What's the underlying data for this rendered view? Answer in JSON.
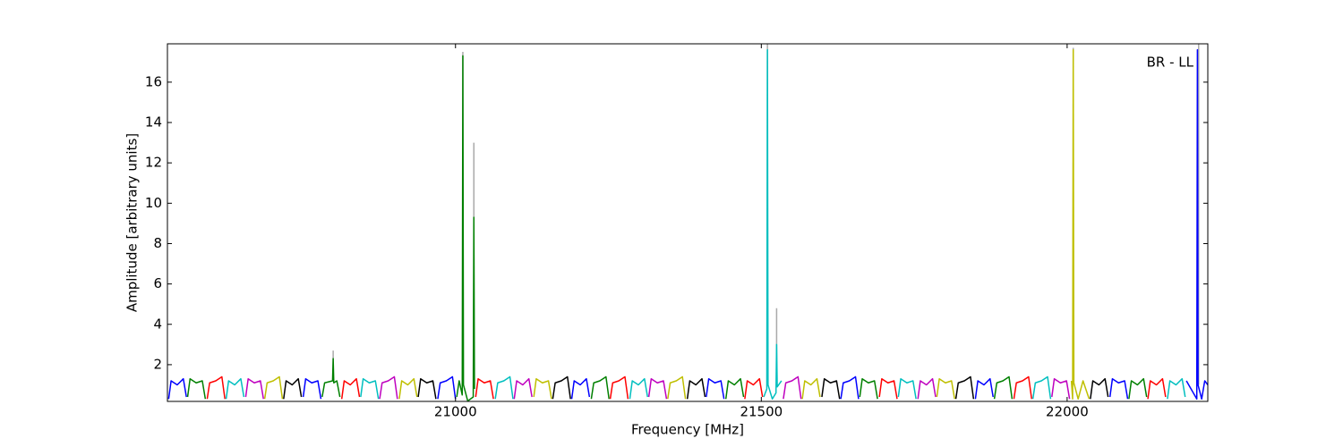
{
  "chart_data": {
    "type": "line",
    "annotation": "BR - LL",
    "xlabel": "Frequency [MHz]",
    "ylabel": "Amplitude [arbitrary units]",
    "xlim": [
      20529,
      22230
    ],
    "ylim": [
      0.18,
      17.9
    ],
    "xticks": [
      21000,
      21500,
      22000
    ],
    "yticks": [
      2,
      4,
      6,
      8,
      10,
      12,
      14,
      16
    ],
    "series": [
      {
        "color": "#aaaaaa",
        "x": [
          20800,
          20800,
          null,
          21012,
          21012,
          null,
          21030,
          21030,
          null,
          21510,
          21510,
          null,
          21525,
          21525,
          null,
          22010,
          22010,
          null,
          22215,
          22215
        ],
        "values": [
          1.2,
          2.7,
          null,
          1.0,
          17.5,
          null,
          1.0,
          13.0,
          null,
          1.0,
          17.9,
          null,
          1.0,
          4.8,
          null,
          1.0,
          17.7,
          null,
          1.0,
          17.9
        ]
      },
      {
        "color": "#0000ff",
        "x": [
          20531,
          20535,
          20545,
          20555,
          20560,
          null,
          20751,
          20755,
          20765,
          20775,
          20780,
          null,
          20971,
          20975,
          20985,
          20995,
          21000,
          null,
          21190,
          21194,
          21204,
          21214,
          21219,
          null,
          21410,
          21414,
          21424,
          21434,
          21439,
          null,
          21630,
          21634,
          21644,
          21654,
          21659,
          null,
          21850,
          21854,
          21864,
          21874,
          21879,
          null,
          22070,
          22074,
          22084,
          22094,
          22099,
          null,
          22195,
          22212,
          22213,
          22214,
          22220,
          22225,
          22230
        ],
        "values": [
          0.3,
          1.2,
          1.0,
          1.3,
          0.4,
          null,
          0.4,
          1.3,
          1.1,
          1.2,
          0.3,
          null,
          0.3,
          1.1,
          1.2,
          1.4,
          0.3,
          null,
          0.3,
          1.2,
          1.0,
          1.3,
          0.4,
          null,
          0.4,
          1.3,
          1.1,
          1.2,
          0.3,
          null,
          0.3,
          1.1,
          1.2,
          1.4,
          0.3,
          null,
          0.3,
          1.2,
          1.0,
          1.3,
          0.4,
          null,
          0.4,
          1.3,
          1.1,
          1.2,
          0.3,
          null,
          1.2,
          0.3,
          17.6,
          1.0,
          0.3,
          1.2,
          1.0
        ]
      },
      {
        "color": "#008000",
        "x": [
          20562,
          20566,
          20576,
          20586,
          20591,
          null,
          20782,
          20786,
          20799,
          20800,
          20801,
          20806,
          20811,
          null,
          21002,
          21006,
          21011,
          21012,
          21013,
          21020,
          21029,
          21030,
          21031,
          null,
          21222,
          21226,
          21236,
          21246,
          21251,
          null,
          21442,
          21446,
          21456,
          21466,
          21471,
          null,
          21661,
          21665,
          21675,
          21685,
          21690,
          null,
          21881,
          21885,
          21895,
          21905,
          21910,
          null,
          22101,
          22105,
          22115,
          22125,
          22130
        ],
        "values": [
          0.4,
          1.3,
          1.1,
          1.2,
          0.3,
          null,
          0.4,
          1.1,
          1.2,
          2.3,
          1.1,
          1.2,
          0.4,
          null,
          0.4,
          1.2,
          0.5,
          17.3,
          1.0,
          0.2,
          0.4,
          9.3,
          0.8,
          null,
          0.3,
          1.1,
          1.2,
          1.4,
          0.3,
          null,
          0.3,
          1.2,
          1.0,
          1.3,
          0.4,
          null,
          0.4,
          1.3,
          1.1,
          1.2,
          0.3,
          null,
          0.3,
          1.1,
          1.2,
          1.4,
          0.3,
          null,
          0.3,
          1.2,
          1.0,
          1.3,
          0.4
        ]
      },
      {
        "color": "#ff0000",
        "x": [
          20594,
          20598,
          20608,
          20618,
          20623,
          null,
          20814,
          20818,
          20828,
          20838,
          20843,
          null,
          21033,
          21037,
          21047,
          21057,
          21062,
          null,
          21253,
          21257,
          21267,
          21277,
          21282,
          null,
          21473,
          21477,
          21487,
          21497,
          21502,
          null,
          21693,
          21697,
          21707,
          21717,
          21722,
          null,
          21913,
          21917,
          21927,
          21937,
          21942,
          null,
          22132,
          22136,
          22146,
          22156,
          22161
        ],
        "values": [
          0.3,
          1.1,
          1.2,
          1.4,
          0.3,
          null,
          0.3,
          1.2,
          1.0,
          1.3,
          0.4,
          null,
          0.4,
          1.3,
          1.1,
          1.2,
          0.3,
          null,
          0.3,
          1.1,
          1.2,
          1.4,
          0.3,
          null,
          0.3,
          1.2,
          1.0,
          1.3,
          0.4,
          null,
          0.4,
          1.3,
          1.1,
          1.2,
          0.3,
          null,
          0.3,
          1.1,
          1.2,
          1.4,
          0.3,
          null,
          0.3,
          1.2,
          1.0,
          1.3,
          0.4
        ]
      },
      {
        "color": "#00bfbf",
        "x": [
          20625,
          20629,
          20639,
          20649,
          20654,
          null,
          20845,
          20849,
          20859,
          20869,
          20874,
          null,
          21065,
          21069,
          21079,
          21089,
          21094,
          null,
          21285,
          21289,
          21299,
          21309,
          21314,
          null,
          21504,
          21509,
          21510,
          21511,
          21518,
          21524,
          21525,
          21526,
          21533,
          null,
          21724,
          21728,
          21738,
          21748,
          21753,
          null,
          21944,
          21948,
          21958,
          21968,
          21973,
          null,
          22164,
          22168,
          22178,
          22188,
          22193
        ],
        "values": [
          0.3,
          1.2,
          1.0,
          1.3,
          0.4,
          null,
          0.4,
          1.3,
          1.1,
          1.2,
          0.3,
          null,
          0.3,
          1.1,
          1.2,
          1.4,
          0.3,
          null,
          0.3,
          1.2,
          1.0,
          1.3,
          0.4,
          null,
          0.4,
          0.8,
          17.6,
          1.0,
          0.3,
          0.6,
          3.0,
          0.9,
          1.2,
          null,
          0.4,
          1.3,
          1.1,
          1.2,
          0.3,
          null,
          0.3,
          1.1,
          1.2,
          1.4,
          0.3,
          null,
          0.3,
          1.2,
          1.0,
          1.3,
          0.4
        ]
      },
      {
        "color": "#bf00bf",
        "x": [
          20657,
          20661,
          20671,
          20681,
          20686,
          null,
          20876,
          20880,
          20890,
          20900,
          20905,
          null,
          21096,
          21100,
          21110,
          21120,
          21125,
          null,
          21316,
          21320,
          21330,
          21340,
          21345,
          null,
          21536,
          21540,
          21550,
          21560,
          21565,
          null,
          21756,
          21760,
          21770,
          21780,
          21785,
          null,
          21975,
          21979,
          21989,
          21999,
          22004
        ],
        "values": [
          0.4,
          1.3,
          1.1,
          1.2,
          0.3,
          null,
          0.3,
          1.1,
          1.2,
          1.4,
          0.3,
          null,
          0.3,
          1.2,
          1.0,
          1.3,
          0.4,
          null,
          0.4,
          1.3,
          1.1,
          1.2,
          0.3,
          null,
          0.3,
          1.1,
          1.2,
          1.4,
          0.3,
          null,
          0.3,
          1.2,
          1.0,
          1.3,
          0.4,
          null,
          0.4,
          1.3,
          1.1,
          1.2,
          0.3
        ]
      },
      {
        "color": "#bfbf00",
        "x": [
          20688,
          20692,
          20702,
          20712,
          20717,
          null,
          20908,
          20912,
          20922,
          20932,
          20937,
          null,
          21128,
          21132,
          21142,
          21152,
          21157,
          null,
          21347,
          21351,
          21361,
          21371,
          21376,
          null,
          21567,
          21571,
          21581,
          21591,
          21596,
          null,
          21787,
          21791,
          21801,
          21811,
          21816,
          null,
          22007,
          22009,
          22010,
          22011,
          22018,
          22026,
          22036
        ],
        "values": [
          0.3,
          1.1,
          1.2,
          1.4,
          0.3,
          null,
          0.3,
          1.2,
          1.0,
          1.3,
          0.4,
          null,
          0.4,
          1.3,
          1.1,
          1.2,
          0.3,
          null,
          0.3,
          1.1,
          1.2,
          1.4,
          0.3,
          null,
          0.3,
          1.2,
          1.0,
          1.3,
          0.4,
          null,
          0.4,
          1.3,
          1.1,
          1.2,
          0.3,
          null,
          1.2,
          0.3,
          17.6,
          1.1,
          0.3,
          1.2,
          0.3
        ]
      },
      {
        "color": "#000000",
        "x": [
          20719,
          20723,
          20733,
          20743,
          20748,
          null,
          20939,
          20943,
          20953,
          20963,
          20968,
          null,
          21159,
          21163,
          21173,
          21183,
          21188,
          null,
          21379,
          21383,
          21393,
          21403,
          21408,
          null,
          21599,
          21603,
          21613,
          21623,
          21628,
          null,
          21818,
          21822,
          21832,
          21842,
          21847,
          null,
          22038,
          22042,
          22052,
          22062,
          22067
        ],
        "values": [
          0.3,
          1.2,
          1.0,
          1.3,
          0.4,
          null,
          0.4,
          1.3,
          1.1,
          1.2,
          0.3,
          null,
          0.3,
          1.1,
          1.2,
          1.4,
          0.3,
          null,
          0.3,
          1.2,
          1.0,
          1.3,
          0.4,
          null,
          0.4,
          1.3,
          1.1,
          1.2,
          0.3,
          null,
          0.3,
          1.1,
          1.2,
          1.4,
          0.3,
          null,
          0.3,
          1.2,
          1.0,
          1.3,
          0.4
        ]
      }
    ]
  }
}
